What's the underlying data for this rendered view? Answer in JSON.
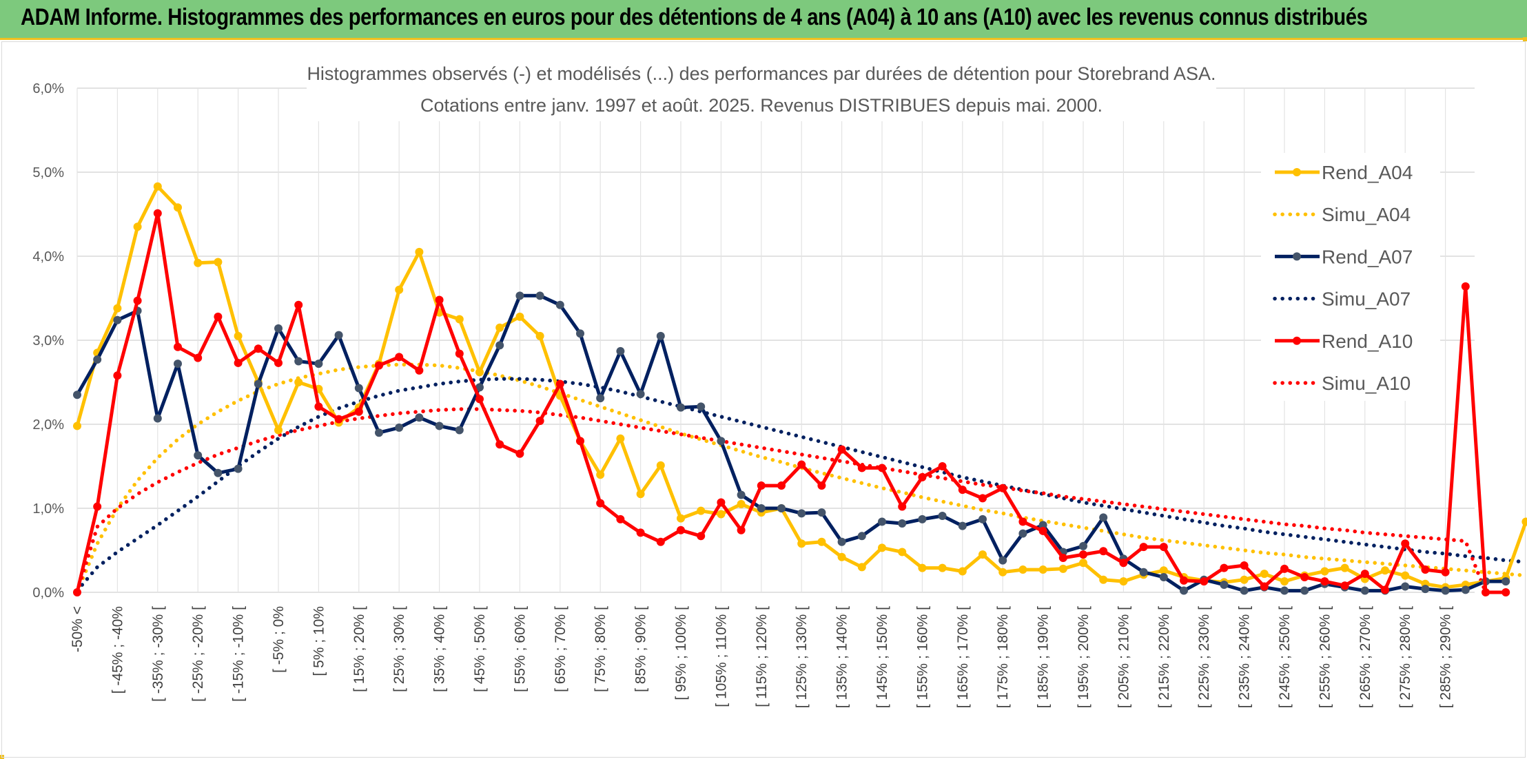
{
  "header": {
    "title": "ADAM Informe. Histogrammes des performances en euros pour des détentions de 4 ans (A04) à 10 ans (A10) avec les revenus connus distribués"
  },
  "colors": {
    "header_bg": "#7dc97d",
    "accent": "#f0c020",
    "a04": "#ffc000",
    "a07": "#002060",
    "a10": "#ff0000",
    "a07_marker": "#44546a",
    "grid": "#d9d9d9",
    "text": "#595959"
  },
  "chart_data": {
    "type": "line",
    "title_lines": [
      "Histogrammes observés (-) et modélisés (...) des performances par durées de détention pour Storebrand ASA.",
      "Cotations entre janv. 1997 et août. 2025. Revenus DISTRIBUES depuis mai. 2000."
    ],
    "ylim": [
      0,
      6
    ],
    "y_ticks": [
      "0,0%",
      "1,0%",
      "2,0%",
      "3,0%",
      "4,0%",
      "5,0%",
      "6,0%"
    ],
    "y_tick_values": [
      0,
      1,
      2,
      3,
      4,
      5,
      6
    ],
    "grid": true,
    "legend_position": "right",
    "x_ticks": [
      "-50% <",
      "[ -45% ; -40%",
      "[ -35% ; -30% [",
      "[ -25% ; -20% [",
      "[ -15% ; -10% [",
      "[ -5% ; 0%",
      "[ 5% ; 10%",
      "[ 15% ; 20% [",
      "[ 25% ; 30% [",
      "[ 35% ; 40% [",
      "[ 45% ; 50% [",
      "[ 55% ; 60% [",
      "[ 65% ; 70% [",
      "[ 75% ; 80% [",
      "[ 85% ; 90% [",
      "[ 95% ; 100% [",
      "[ 105% ; 110% [",
      "[ 115% ; 120% [",
      "[ 125% ; 130% [",
      "[ 135% ; 140% [",
      "[ 145% ; 150% [",
      "[ 155% ; 160% [",
      "[ 165% ; 170% [",
      "[ 175% ; 180% [",
      "[ 185% ; 190% [",
      "[ 195% ; 200% [",
      "[ 205% ; 210% [",
      "[ 215% ; 220% [",
      "[ 225% ; 230% [",
      "[ 235% ; 240% [",
      "[ 245% ; 250% [",
      "[ 255% ; 260% [",
      "[ 265% ; 270% [",
      "[ 275% ; 280% [",
      "[ 285% ; 290% ["
    ],
    "series": [
      {
        "name": "Rend_A04",
        "style": "solid",
        "color": "#ffc000",
        "values": [
          1.98,
          2.85,
          3.38,
          4.35,
          4.83,
          4.58,
          3.92,
          3.93,
          3.05,
          2.5,
          1.93,
          2.5,
          2.42,
          2.02,
          2.2,
          2.72,
          3.6,
          4.05,
          3.33,
          3.25,
          2.62,
          3.15,
          3.28,
          3.05,
          2.34,
          1.8,
          1.4,
          1.83,
          1.17,
          1.51,
          0.88,
          0.97,
          0.93,
          1.05,
          0.95,
          1.0,
          0.58,
          0.6,
          0.42,
          0.3,
          0.53,
          0.48,
          0.29,
          0.29,
          0.25,
          0.45,
          0.24,
          0.27,
          0.27,
          0.28,
          0.35,
          0.15,
          0.13,
          0.21,
          0.26,
          0.18,
          0.14,
          0.12,
          0.15,
          0.22,
          0.13,
          0.2,
          0.25,
          0.29,
          0.16,
          0.26,
          0.2,
          0.1,
          0.06,
          0.09,
          0.13,
          0.17,
          0.84
        ]
      },
      {
        "name": "Simu_A04",
        "style": "dotted",
        "color": "#ffc000",
        "values": [
          0.0,
          0.58,
          1.0,
          1.33,
          1.6,
          1.82,
          2.0,
          2.15,
          2.28,
          2.39,
          2.48,
          2.55,
          2.6,
          2.65,
          2.68,
          2.7,
          2.71,
          2.71,
          2.7,
          2.67,
          2.63,
          2.58,
          2.52,
          2.45,
          2.37,
          2.29,
          2.21,
          2.13,
          2.05,
          1.97,
          1.89,
          1.82,
          1.75,
          1.68,
          1.61,
          1.55,
          1.48,
          1.42,
          1.36,
          1.3,
          1.24,
          1.19,
          1.13,
          1.08,
          1.03,
          0.98,
          0.94,
          0.89,
          0.85,
          0.81,
          0.77,
          0.73,
          0.69,
          0.65,
          0.62,
          0.59,
          0.56,
          0.53,
          0.5,
          0.47,
          0.45,
          0.42,
          0.4,
          0.38,
          0.36,
          0.34,
          0.32,
          0.3,
          0.28,
          0.26,
          0.24,
          0.22,
          0.2
        ]
      },
      {
        "name": "Rend_A07",
        "style": "solid",
        "color": "#002060",
        "values": [
          2.35,
          2.77,
          3.24,
          3.35,
          2.07,
          2.72,
          1.63,
          1.42,
          1.47,
          2.48,
          3.14,
          2.75,
          2.72,
          3.06,
          2.43,
          1.9,
          1.96,
          2.08,
          1.98,
          1.93,
          2.44,
          2.94,
          3.53,
          3.53,
          3.42,
          3.08,
          2.31,
          2.87,
          2.36,
          3.05,
          2.2,
          2.21,
          1.8,
          1.16,
          1.0,
          1.0,
          0.94,
          0.95,
          0.6,
          0.67,
          0.84,
          0.82,
          0.87,
          0.91,
          0.79,
          0.87,
          0.38,
          0.7,
          0.8,
          0.48,
          0.55,
          0.89,
          0.4,
          0.24,
          0.18,
          0.02,
          0.15,
          0.09,
          0.02,
          0.06,
          0.02,
          0.02,
          0.1,
          0.06,
          0.02,
          0.02,
          0.07,
          0.04,
          0.02,
          0.03,
          0.13,
          0.13
        ]
      },
      {
        "name": "Simu_A07",
        "style": "dotted",
        "color": "#002060",
        "values": [
          0.02,
          0.3,
          0.48,
          0.64,
          0.8,
          0.97,
          1.14,
          1.32,
          1.5,
          1.67,
          1.83,
          1.97,
          2.09,
          2.19,
          2.27,
          2.34,
          2.4,
          2.44,
          2.48,
          2.51,
          2.53,
          2.54,
          2.54,
          2.53,
          2.51,
          2.48,
          2.44,
          2.39,
          2.33,
          2.27,
          2.21,
          2.15,
          2.09,
          2.03,
          1.97,
          1.91,
          1.85,
          1.79,
          1.73,
          1.67,
          1.61,
          1.55,
          1.49,
          1.43,
          1.37,
          1.32,
          1.27,
          1.22,
          1.17,
          1.12,
          1.07,
          1.03,
          0.99,
          0.95,
          0.91,
          0.87,
          0.83,
          0.79,
          0.76,
          0.72,
          0.69,
          0.66,
          0.63,
          0.6,
          0.57,
          0.54,
          0.51,
          0.48,
          0.46,
          0.43,
          0.41,
          0.38,
          0.36
        ]
      },
      {
        "name": "Rend_A10",
        "style": "solid",
        "color": "#ff0000",
        "values": [
          0.0,
          1.02,
          2.58,
          3.47,
          4.51,
          2.92,
          2.79,
          3.28,
          2.73,
          2.9,
          2.73,
          3.42,
          2.21,
          2.06,
          2.15,
          2.7,
          2.8,
          2.64,
          3.48,
          2.84,
          2.3,
          1.76,
          1.65,
          2.04,
          2.48,
          1.8,
          1.06,
          0.87,
          0.71,
          0.6,
          0.74,
          0.67,
          1.07,
          0.74,
          1.27,
          1.27,
          1.52,
          1.27,
          1.7,
          1.48,
          1.48,
          1.02,
          1.37,
          1.5,
          1.22,
          1.12,
          1.24,
          0.84,
          0.73,
          0.41,
          0.45,
          0.49,
          0.35,
          0.54,
          0.54,
          0.14,
          0.13,
          0.29,
          0.32,
          0.07,
          0.28,
          0.18,
          0.13,
          0.08,
          0.22,
          0.03,
          0.58,
          0.27,
          0.24,
          3.64,
          0.0,
          0.0
        ]
      },
      {
        "name": "Simu_A10",
        "style": "dotted",
        "color": "#ff0000",
        "values": [
          0.0,
          0.78,
          1.0,
          1.17,
          1.31,
          1.43,
          1.54,
          1.64,
          1.72,
          1.8,
          1.87,
          1.93,
          1.98,
          2.03,
          2.07,
          2.1,
          2.13,
          2.15,
          2.17,
          2.18,
          2.18,
          2.17,
          2.16,
          2.14,
          2.11,
          2.08,
          2.04,
          2.0,
          1.96,
          1.92,
          1.88,
          1.84,
          1.8,
          1.76,
          1.72,
          1.68,
          1.64,
          1.6,
          1.56,
          1.52,
          1.48,
          1.44,
          1.4,
          1.36,
          1.32,
          1.28,
          1.25,
          1.21,
          1.18,
          1.14,
          1.11,
          1.08,
          1.05,
          1.02,
          0.99,
          0.96,
          0.93,
          0.9,
          0.87,
          0.84,
          0.81,
          0.79,
          0.76,
          0.74,
          0.71,
          0.69,
          0.67,
          0.65,
          0.63,
          0.61,
          0.0
        ]
      }
    ]
  }
}
